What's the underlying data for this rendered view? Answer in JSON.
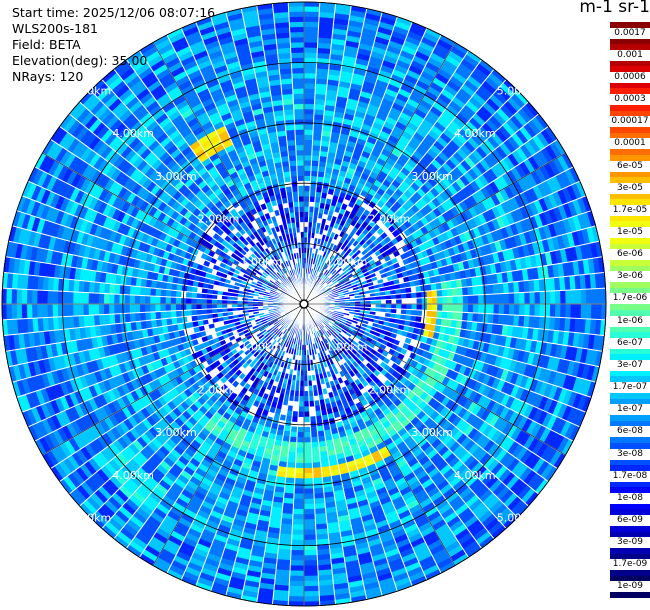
{
  "info": {
    "start_time": "Start time: 2025/12/06 08:07:16",
    "instrument": "WLS200s-181",
    "field": "Field: BETA",
    "elevation": "Elevation(deg): 35.00",
    "nrays": "NRays: 120"
  },
  "colorbar": {
    "title": "m-1 sr-1",
    "labels": [
      "0.0017",
      "0.001",
      "0.0006",
      "0.0003",
      "0.00017",
      "0.0001",
      "6e-05",
      "3e-05",
      "1.7e-05",
      "1e-05",
      "6e-06",
      "3e-06",
      "1.7e-06",
      "1e-06",
      "6e-07",
      "3e-07",
      "1.7e-07",
      "1e-07",
      "6e-08",
      "3e-08",
      "1.7e-08",
      "1e-08",
      "6e-09",
      "3e-09",
      "1.7e-09",
      "1e-09"
    ],
    "colors": [
      "#8b0000",
      "#b40000",
      "#dc0000",
      "#ff1e00",
      "#ff4600",
      "#ff6e00",
      "#ff9600",
      "#ffbe00",
      "#ffe600",
      "#f0ff10",
      "#c8ff38",
      "#a0ff60",
      "#78ff88",
      "#50ffb0",
      "#28ffd8",
      "#00f0ff",
      "#00c8ff",
      "#00a0ff",
      "#0078ff",
      "#0050ff",
      "#0028ff",
      "#0000ff",
      "#0000d8",
      "#0000b0",
      "#000088",
      "#000060"
    ]
  },
  "chart_data": {
    "type": "heatmap",
    "projection": "polar (PPI)",
    "rays": 120,
    "range_unit": "km",
    "range_rings_km": [
      1,
      2,
      3,
      4,
      5
    ],
    "max_range_km": 5.0,
    "ring_labels": [
      "1.00km",
      "2.00km",
      "3.00km",
      "4.00km",
      "5.00km"
    ],
    "color_scale": "log",
    "value_range": [
      1e-09,
      0.0017
    ],
    "background_level": 1e-07,
    "features": [
      {
        "description": "enhanced return arc",
        "azimuth_deg": [
          80,
          220
        ],
        "range_km": [
          2.3,
          2.6
        ],
        "level": 6e-07
      },
      {
        "description": "bright arc east",
        "azimuth_deg": [
          85,
          105
        ],
        "range_km": [
          2.0,
          2.2
        ],
        "level": 1.7e-05
      },
      {
        "description": "bright arc south",
        "azimuth_deg": [
          150,
          190
        ],
        "range_km": [
          2.7,
          2.9
        ],
        "level": 1.7e-05
      },
      {
        "description": "bright spot north-west",
        "azimuth_deg": [
          325,
          335
        ],
        "range_km": [
          2.9,
          3.2
        ],
        "level": 1.7e-05
      },
      {
        "description": "return arc south-west",
        "azimuth_deg": [
          215,
          235
        ],
        "range_km": [
          3.8,
          4.3
        ],
        "level": 3e-07
      }
    ]
  }
}
